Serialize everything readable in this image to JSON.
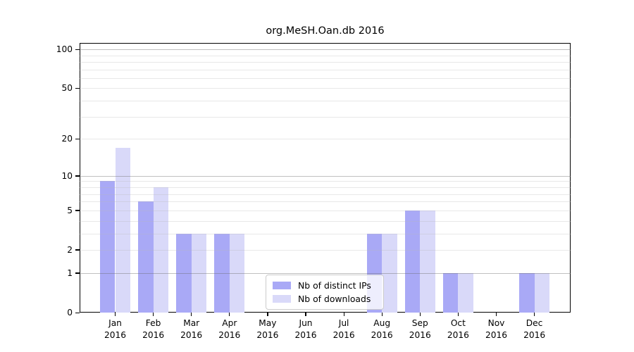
{
  "chart_data": {
    "type": "bar",
    "title": "org.MeSH.Oan.db 2016",
    "year": "2016",
    "categories": [
      "Jan",
      "Feb",
      "Mar",
      "Apr",
      "May",
      "Jun",
      "Jul",
      "Aug",
      "Sep",
      "Oct",
      "Nov",
      "Dec"
    ],
    "series": [
      {
        "name": "Nb of distinct IPs",
        "color": "#a9a9f6",
        "values": [
          9,
          6,
          3,
          3,
          0,
          0,
          0,
          3,
          5,
          1,
          0,
          1
        ]
      },
      {
        "name": "Nb of downloads",
        "color": "#d9d9f9",
        "values": [
          17,
          8,
          3,
          3,
          0,
          0,
          0,
          3,
          5,
          1,
          0,
          1
        ]
      }
    ],
    "yticks": [
      0,
      1,
      2,
      5,
      10,
      20,
      50,
      100
    ],
    "major_gridlines": [
      1,
      10,
      100
    ],
    "minor_gridlines": [
      2,
      3,
      4,
      5,
      6,
      7,
      8,
      9,
      20,
      30,
      40,
      50,
      60,
      70,
      80,
      90
    ],
    "scale": "log1p",
    "ylim": [
      0,
      112
    ],
    "grid": true,
    "legend_position": "inside-bottom-center",
    "axis_color": "#000000"
  }
}
